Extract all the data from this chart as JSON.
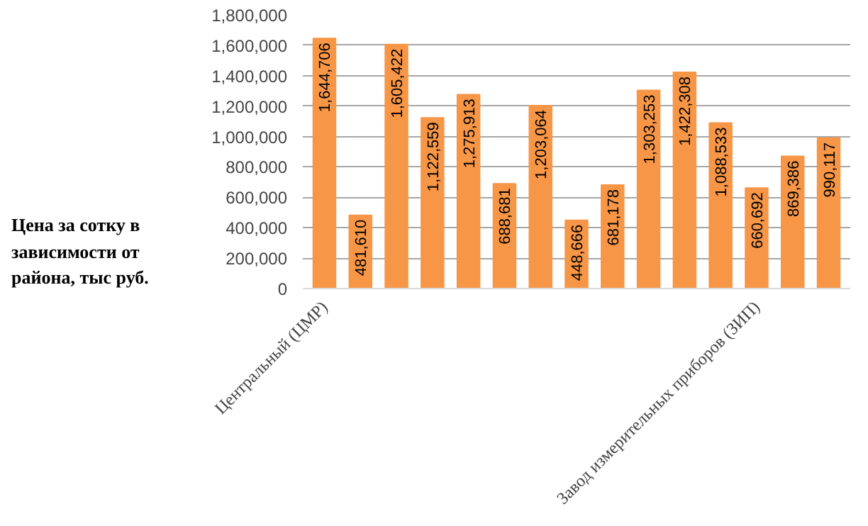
{
  "chart_data": {
    "type": "bar",
    "title": "Цена за сотку в зависимости от района, тыс руб.",
    "categories": [
      "Центральный (ЦМР)",
      null,
      null,
      null,
      null,
      null,
      null,
      null,
      null,
      null,
      null,
      null,
      "Завод измерительных приборов (ЗИП)",
      null,
      null
    ],
    "values": [
      1644706,
      481610,
      1605422,
      1122559,
      1275913,
      688681,
      1203064,
      448666,
      681178,
      1303253,
      1422308,
      1088533,
      660692,
      869386,
      990117
    ],
    "value_labels": [
      "1,644,706",
      "481,610",
      "1,605,422",
      "1,122,559",
      "1,275,913",
      "688,681",
      "1,203,064",
      "448,666",
      "681,178",
      "1,303,253",
      "1,422,308",
      "1,088,533",
      "660,692",
      "869,386",
      "990,117"
    ],
    "color": "#f79646",
    "ylim": [
      0,
      1800000
    ],
    "yticks": [
      {
        "value": 0,
        "label": "0"
      },
      {
        "value": 200000,
        "label": "200,000"
      },
      {
        "value": 400000,
        "label": "400,000"
      },
      {
        "value": 600000,
        "label": "600,000"
      },
      {
        "value": 800000,
        "label": "800,000"
      },
      {
        "value": 1000000,
        "label": "1,000,000"
      },
      {
        "value": 1200000,
        "label": "1,200,000"
      },
      {
        "value": 1400000,
        "label": "1,400,000"
      },
      {
        "value": 1600000,
        "label": "1,600,000"
      },
      {
        "value": 1800000,
        "label": "1,800,000"
      }
    ],
    "grid": "y"
  }
}
